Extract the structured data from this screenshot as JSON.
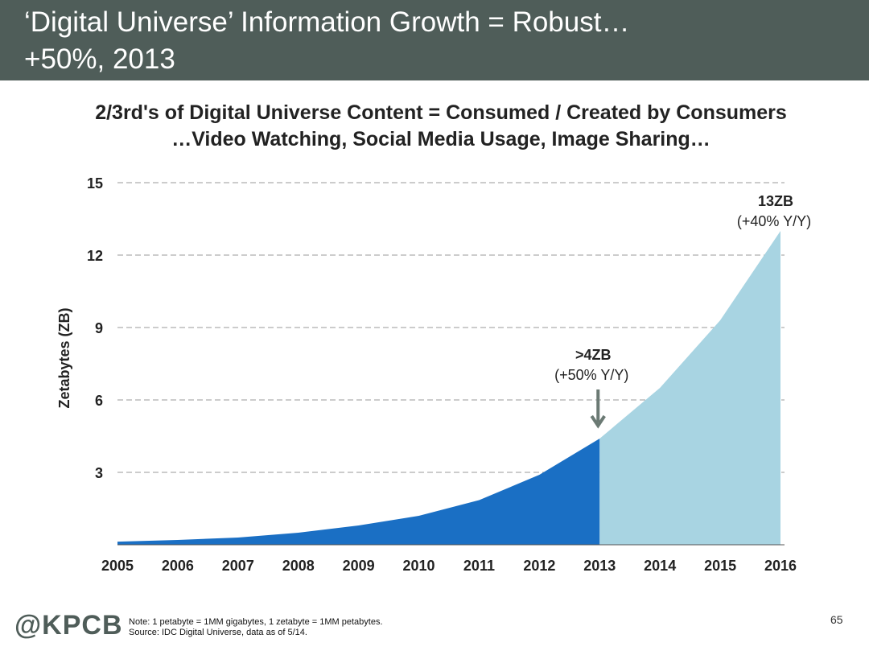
{
  "header": {
    "title_line1": "‘Digital Universe’ Information Growth = Robust…",
    "title_line2": "+50%, 2013"
  },
  "chart_data": {
    "type": "area",
    "title": "2/3rd's of Digital Universe Content = Consumed / Created by Consumers",
    "subtitle": "…Video Watching, Social Media Usage, Image Sharing…",
    "ylabel": "Zetabytes (ZB)",
    "xlabel": "",
    "x": [
      "2005",
      "2006",
      "2007",
      "2008",
      "2009",
      "2010",
      "2011",
      "2012",
      "2013",
      "2014",
      "2015",
      "2016"
    ],
    "yticks": [
      3,
      6,
      9,
      12,
      15
    ],
    "ylim": [
      0,
      15
    ],
    "grid": true,
    "series": [
      {
        "values": [
          0.13,
          0.2,
          0.3,
          0.5,
          0.8,
          1.2,
          1.85,
          2.9,
          4.4,
          null,
          null,
          null
        ],
        "color": "#1a6fc4"
      },
      {
        "values": [
          null,
          null,
          null,
          null,
          null,
          null,
          null,
          null,
          4.4,
          6.5,
          9.3,
          13.0
        ],
        "color": "#a8d4e2"
      }
    ],
    "annotations": [
      {
        "x": "2013",
        "value": 4.4,
        "label": ">4ZB",
        "sublabel": "(+50% Y/Y)",
        "arrow": true
      },
      {
        "x": "2016",
        "value": 13.0,
        "label": "13ZB",
        "sublabel": "(+40% Y/Y)",
        "arrow": false
      }
    ]
  },
  "footer": {
    "logo": "@KPCB",
    "note_line1": "Note: 1 petabyte = 1MM gigabytes, 1 zetabyte = 1MM petabytes.",
    "note_line2": "Source: IDC Digital Universe, data as of 5/14.",
    "page_number": "65"
  }
}
